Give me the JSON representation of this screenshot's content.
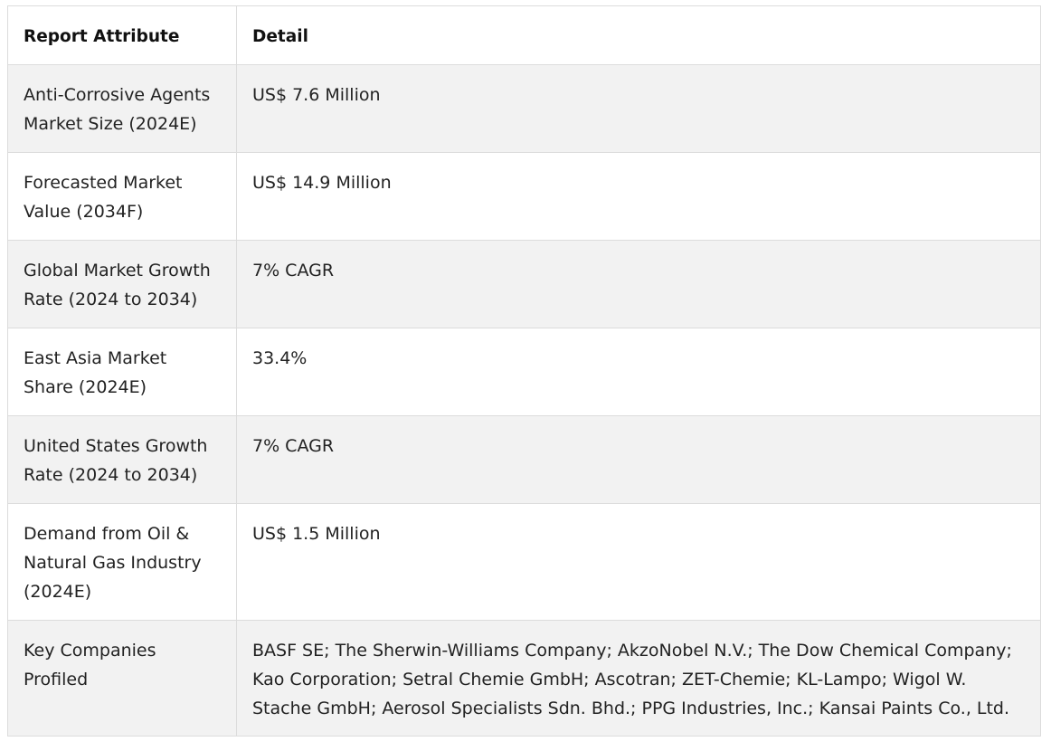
{
  "table": {
    "headers": [
      "Report Attribute",
      "Detail"
    ],
    "rows": [
      {
        "attribute": "Anti-Corrosive Agents Market Size (2024E)",
        "detail": "US$ 7.6 Million"
      },
      {
        "attribute": "Forecasted Market Value (2034F)",
        "detail": "US$ 14.9 Million"
      },
      {
        "attribute": "Global Market Growth Rate (2024 to 2034)",
        "detail": "7% CAGR"
      },
      {
        "attribute": "East Asia Market Share (2024E)",
        "detail": "33.4%"
      },
      {
        "attribute": "United States Growth Rate (2024 to 2034)",
        "detail": "7% CAGR"
      },
      {
        "attribute": "Demand from Oil & Natural Gas Industry (2024E)",
        "detail": "US$ 1.5 Million"
      },
      {
        "attribute": "Key Companies Profiled",
        "detail": "BASF SE; The Sherwin-Williams Company; AkzoNobel N.V.; The Dow Chemical Company; Kao Corporation; Setral Chemie GmbH; Ascotran; ZET-Chemie; KL-Lampo; Wigol W. Stache GmbH; Aerosol Specialists Sdn. Bhd.; PPG Industries, Inc.; Kansai Paints Co., Ltd."
      }
    ]
  }
}
